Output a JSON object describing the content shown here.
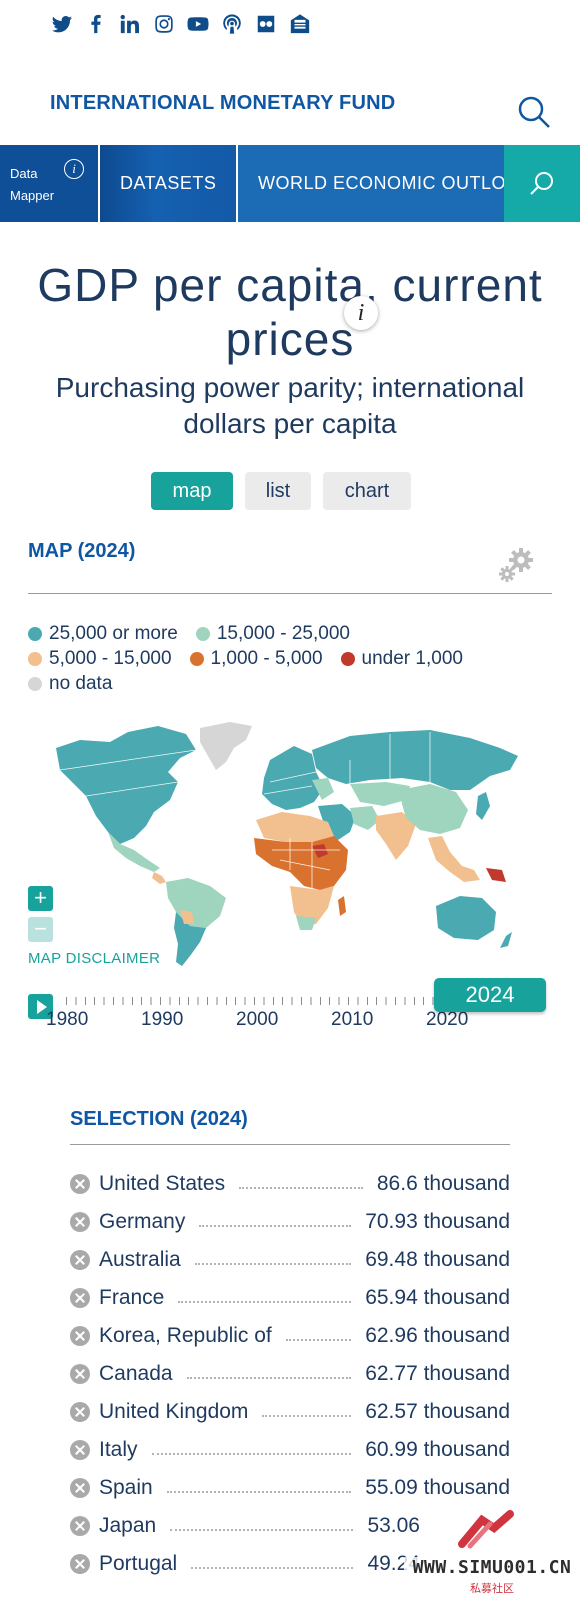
{
  "social": {
    "icons": [
      "twitter-icon",
      "facebook-icon",
      "linkedin-icon",
      "instagram-icon",
      "youtube-icon",
      "podcast-icon",
      "flickr-icon",
      "newsletter-icon"
    ]
  },
  "header": {
    "brand": "INTERNATIONAL MONETARY FUND"
  },
  "nav": {
    "data_mapper_line1": "Data",
    "data_mapper_line2": "Mapper",
    "info_glyph": "i",
    "datasets": "DATASETS",
    "weo": "WORLD ECONOMIC OUTLOOK"
  },
  "title": {
    "line1": "GDP per capita, current",
    "line2": "prices",
    "info_glyph": "i",
    "subtitle_line1": "Purchasing power parity; international",
    "subtitle_line2": "dollars per capita"
  },
  "views": {
    "map": "map",
    "list": "list",
    "chart": "chart",
    "active": "map"
  },
  "map_section": {
    "title": "MAP (2024)",
    "legend": [
      {
        "label": "25,000 or more",
        "color": "#4aa9b1"
      },
      {
        "label": "15,000 - 25,000",
        "color": "#9fd4bf"
      },
      {
        "label": "5,000 - 15,000",
        "color": "#f2bf8f"
      },
      {
        "label": "1,000 - 5,000",
        "color": "#d9722e"
      },
      {
        "label": "under 1,000",
        "color": "#c0392b"
      },
      {
        "label": "no data",
        "color": "#d6d6d6"
      }
    ],
    "zoom_in": "+",
    "zoom_out": "−",
    "disclaimer": "MAP DISCLAIMER"
  },
  "timeline": {
    "years": [
      "1980",
      "1990",
      "2000",
      "2010",
      "2020"
    ],
    "current_year": "2024"
  },
  "selection": {
    "title": "SELECTION (2024)",
    "rows": [
      {
        "country": "United States",
        "value": "86.6 thousand"
      },
      {
        "country": "Germany",
        "value": "70.93 thousand"
      },
      {
        "country": "Australia",
        "value": "69.48 thousand"
      },
      {
        "country": "France",
        "value": "65.94 thousand"
      },
      {
        "country": "Korea, Republic of",
        "value": "62.96 thousand"
      },
      {
        "country": "Canada",
        "value": "62.77 thousand"
      },
      {
        "country": "United Kingdom",
        "value": "62.57 thousand"
      },
      {
        "country": "Italy",
        "value": "60.99 thousand"
      },
      {
        "country": "Spain",
        "value": "55.09 thousand"
      },
      {
        "country": "Japan",
        "value": "53.06"
      },
      {
        "country": "Portugal",
        "value": "49.24"
      }
    ]
  },
  "watermark": {
    "text": "WWW.SIMU001.CN",
    "cn": "私募社区"
  }
}
